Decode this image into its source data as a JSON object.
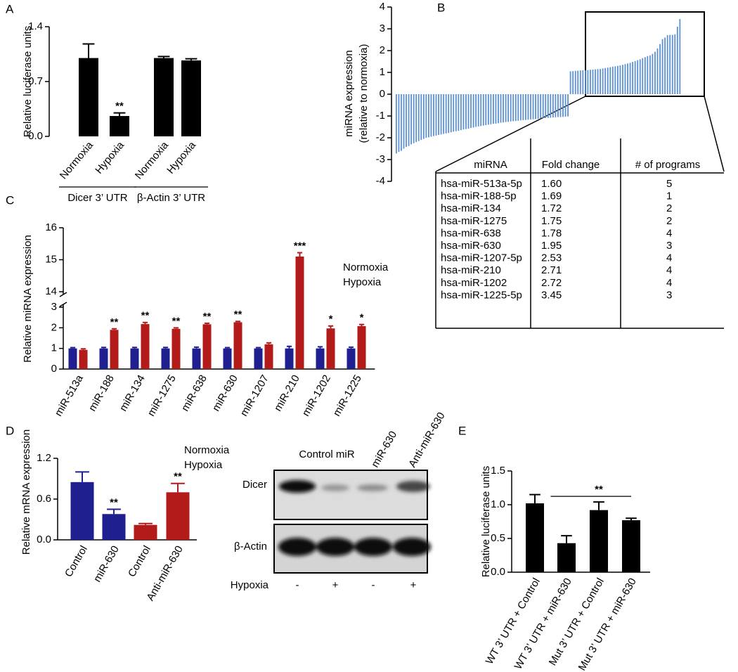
{
  "chart_data": [
    {
      "panel_label": "A",
      "type": "bar",
      "ylabel": "Relative luciferase units",
      "categories": [
        "Normoxia",
        "Hypoxia",
        "Normoxia",
        "Hypoxia"
      ],
      "series": [
        {
          "color": "#000000",
          "values": [
            1.0,
            0.26,
            1.0,
            0.97
          ],
          "errors": [
            0.18,
            0.04,
            0.02,
            0.02
          ],
          "annotations": [
            null,
            "**",
            null,
            null
          ]
        }
      ],
      "groups": [
        "Dicer 3’ UTR",
        "β-Actin 3’ UTR"
      ],
      "ylim": [
        0,
        1.4
      ],
      "yticks": [
        {
          "value": 0,
          "label": "0.0"
        },
        0.7,
        1.4
      ]
    },
    {
      "panel_label": "B",
      "type": "sorted-bar",
      "ylabel": [
        "miRNA expression",
        "(relative to normoxia)"
      ],
      "color": "#5b8fcf",
      "values": [
        -2.72,
        -2.65,
        -2.6,
        -2.5,
        -2.42,
        -2.38,
        -2.3,
        -2.25,
        -2.2,
        -2.15,
        -2.1,
        -2.05,
        -2.0,
        -1.98,
        -1.95,
        -1.92,
        -1.9,
        -1.87,
        -1.85,
        -1.82,
        -1.8,
        -1.78,
        -1.75,
        -1.72,
        -1.7,
        -1.68,
        -1.65,
        -1.62,
        -1.6,
        -1.58,
        -1.55,
        -1.53,
        -1.5,
        -1.48,
        -1.46,
        -1.44,
        -1.42,
        -1.4,
        -1.38,
        -1.36,
        -1.35,
        -1.33,
        -1.31,
        -1.3,
        -1.28,
        -1.27,
        -1.25,
        -1.24,
        -1.23,
        -1.22,
        -1.2,
        -1.19,
        -1.18,
        -1.17,
        -1.16,
        -1.15,
        -1.14,
        -1.13,
        -1.12,
        -1.11,
        -1.1,
        -1.09,
        -1.08,
        -1.07,
        -1.06,
        -1.05,
        -1.05,
        -1.04,
        -1.03,
        -1.02,
        1.05,
        1.06,
        1.07,
        1.08,
        1.09,
        1.1,
        1.1,
        1.11,
        1.12,
        1.13,
        1.14,
        1.15,
        1.16,
        1.18,
        1.2,
        1.22,
        1.24,
        1.26,
        1.28,
        1.3,
        1.32,
        1.35,
        1.38,
        1.41,
        1.44,
        1.48,
        1.52,
        1.56,
        1.6,
        1.65,
        1.7,
        1.75,
        1.78,
        1.85,
        1.95,
        2.1,
        2.3,
        2.53,
        2.6,
        2.71,
        2.72,
        2.72,
        2.75,
        3.1,
        3.45
      ],
      "ylim": [
        -4,
        4
      ],
      "yticks": [
        -4,
        -3,
        -2,
        -1,
        0,
        1,
        2,
        3,
        4
      ],
      "table": {
        "columns": [
          "miRNA",
          "Fold change",
          "# of programs"
        ],
        "rows": [
          [
            "hsa-miR-513a-5p",
            "1.60",
            "5"
          ],
          [
            "hsa-miR-188-5p",
            "1.69",
            "1"
          ],
          [
            "hsa-miR-134",
            "1.72",
            "2"
          ],
          [
            "hsa-miR-1275",
            "1.75",
            "2"
          ],
          [
            "hsa-miR-638",
            "1.78",
            "4"
          ],
          [
            "hsa-miR-630",
            "1.95",
            "3"
          ],
          [
            "hsa-miR-1207-5p",
            "2.53",
            "4"
          ],
          [
            "hsa-miR-210",
            "2.71",
            "4"
          ],
          [
            "hsa-miR-1202",
            "2.72",
            "4"
          ],
          [
            "hsa-miR-1225-5p",
            "3.45",
            "3"
          ]
        ]
      }
    },
    {
      "panel_label": "C",
      "type": "bar",
      "ylabel": "Relative miRNA expression",
      "categories": [
        "miR-513a",
        "miR-188",
        "miR-134",
        "miR-1275",
        "miR-638",
        "miR-630",
        "miR-1207",
        "miR-210",
        "miR-1202",
        "miR-1225"
      ],
      "series": [
        {
          "name": "Normoxia",
          "color": "#1f1f8f",
          "values": [
            1,
            1,
            1,
            1,
            1,
            1,
            1,
            1,
            1,
            1
          ],
          "errors": [
            0.04,
            0.05,
            0.05,
            0.05,
            0.06,
            0.04,
            0.04,
            0.1,
            0.08,
            0.06
          ]
        },
        {
          "name": "Hypoxia",
          "color": "#b31b1b",
          "values": [
            0.93,
            1.9,
            2.18,
            1.95,
            2.17,
            2.27,
            1.2,
            15.1,
            1.97,
            2.08
          ],
          "errors": [
            0.05,
            0.05,
            0.08,
            0.05,
            0.05,
            0.04,
            0.07,
            0.12,
            0.12,
            0.08
          ],
          "annotations": [
            null,
            "**",
            "**",
            "**",
            "**",
            "**",
            null,
            "***",
            "*",
            "*"
          ]
        }
      ],
      "ylim": [
        0,
        16
      ],
      "axis_break": [
        3,
        14
      ],
      "yticks": [
        0,
        1,
        2,
        3,
        14,
        15,
        16
      ]
    },
    {
      "panel_label": "D",
      "type": "bar",
      "ylabel": "Relative mRNA expression",
      "categories": [
        "Control",
        "miR-630",
        "Control",
        "Anti-miR-630"
      ],
      "series": [
        {
          "name": "Normoxia",
          "color": "#1f1f8f",
          "values": [
            0.85,
            0.38,
            null,
            null
          ],
          "errors": [
            0.15,
            0.07,
            null,
            null
          ],
          "annotations": [
            null,
            "**",
            null,
            null
          ]
        },
        {
          "name": "Hypoxia",
          "color": "#b31b1b",
          "values": [
            null,
            null,
            0.22,
            0.7
          ],
          "errors": [
            null,
            null,
            0.02,
            0.13
          ],
          "annotations": [
            null,
            null,
            null,
            "**"
          ]
        }
      ],
      "ylim": [
        0,
        1.2
      ],
      "yticks": [
        {
          "value": 0,
          "label": "0.0"
        },
        0.6,
        1.2
      ]
    },
    {
      "panel_label": "E",
      "type": "bar",
      "ylabel": "Relative luciferase units",
      "categories": [
        "WT 3’ UTR + Control",
        "WT 3’ UTR + miR-630",
        "Mut 3’ UTR + Control",
        "Mut 3’ UTR + miR-630"
      ],
      "series": [
        {
          "color": "#000000",
          "values": [
            1.02,
            0.43,
            0.92,
            0.77
          ],
          "errors": [
            0.13,
            0.11,
            0.12,
            0.03
          ],
          "annotations": [
            null,
            null,
            "**",
            null
          ]
        }
      ],
      "bracket": true,
      "ylim": [
        0,
        1.5
      ],
      "yticks": [
        {
          "value": 0,
          "label": "0.0"
        },
        0.5,
        {
          "value": 1,
          "label": "1.0"
        },
        1.5
      ]
    }
  ],
  "blot": {
    "lanes": [
      "Control miR",
      "miR-630",
      "Anti-miR-630"
    ],
    "rows": [
      "Dicer",
      "β-Actin"
    ],
    "condition": "Hypoxia",
    "condition_signs": [
      "-",
      "+",
      "-",
      "+"
    ]
  }
}
